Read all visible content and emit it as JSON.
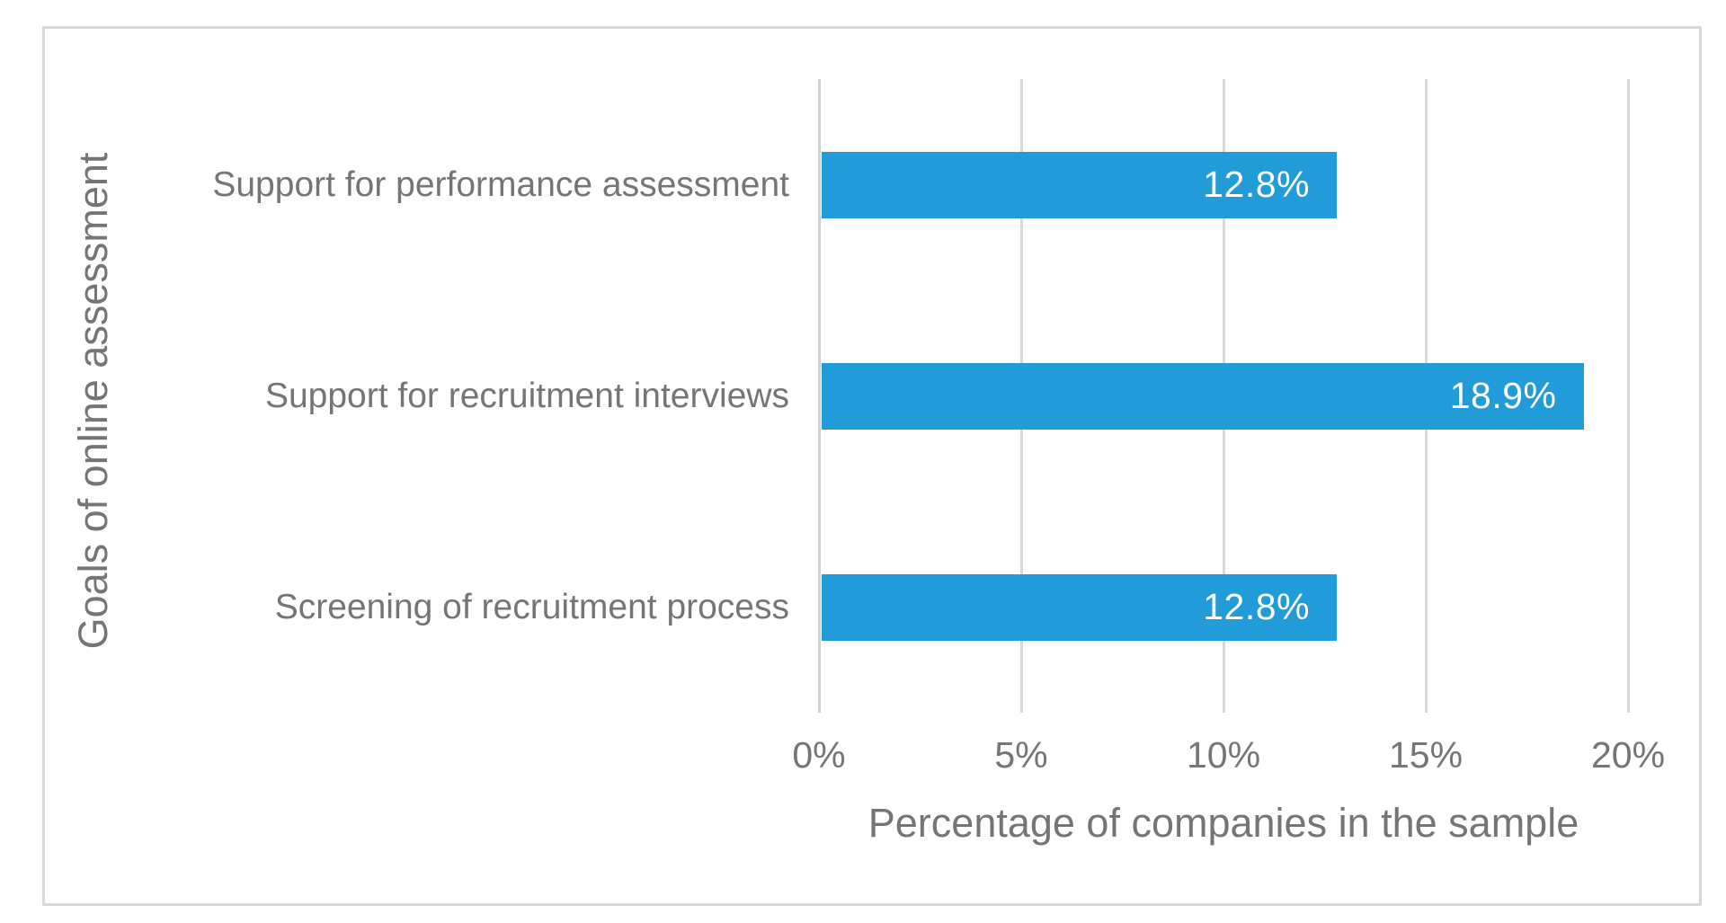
{
  "chart_data": {
    "type": "bar",
    "orientation": "horizontal",
    "title": "",
    "categories": [
      "Support for performance assessment",
      "Support for recruitment interviews",
      "Screening of recruitment process"
    ],
    "values": [
      12.8,
      18.9,
      12.8
    ],
    "value_labels": [
      "12.8%",
      "18.9%",
      "12.8%"
    ],
    "xlabel": "Percentage of companies in the sample",
    "ylabel": "Goals of online assessment",
    "xlim": [
      0,
      20
    ],
    "xticks": [
      0,
      5,
      10,
      15,
      20
    ],
    "xtick_labels": [
      "0%",
      "5%",
      "10%",
      "15%",
      "20%"
    ],
    "grid": "vertical-only",
    "legend": "none",
    "value_label_position": "inside-end",
    "colors": {
      "bar": "#219CD8",
      "value_label_text": "#FFFFFF",
      "axis_text": "#757575",
      "gridline": "#D9D9D9",
      "axis_line": "#D2D2D2",
      "frame_border": "#D9D9D9",
      "background": "#FFFFFF"
    }
  }
}
